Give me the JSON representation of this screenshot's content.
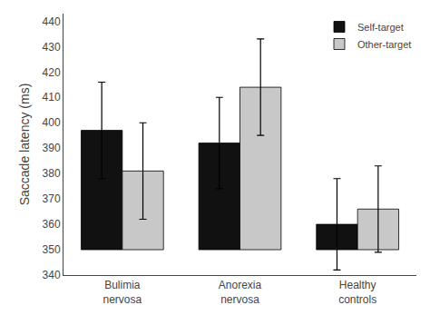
{
  "chart_data": {
    "type": "bar",
    "categories": [
      "Bulimia\nnervosa",
      "Anorexia\nnervosa",
      "Healthy\ncontrols"
    ],
    "series": [
      {
        "name": "Self-target",
        "color": "#111111",
        "values": [
          397,
          392,
          360
        ],
        "error_up": [
          19,
          18,
          18
        ],
        "error_down": [
          19,
          18,
          18
        ]
      },
      {
        "name": "Other-target",
        "color": "#c8c8c8",
        "values": [
          381,
          414,
          366
        ],
        "error_up": [
          19,
          19,
          17
        ],
        "error_down": [
          19,
          19,
          17
        ]
      }
    ],
    "baseline": 350,
    "ylabel": "Saccade latency (ms)",
    "ylim": [
      340,
      443
    ],
    "yticks": [
      340,
      350,
      360,
      370,
      380,
      390,
      400,
      410,
      420,
      430,
      440
    ],
    "grid": false,
    "legend": "upper right"
  }
}
